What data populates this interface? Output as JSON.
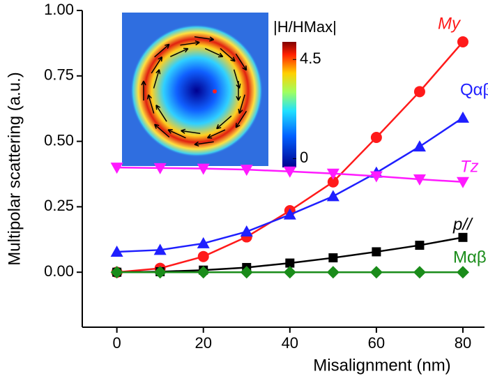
{
  "chart_data": {
    "type": "line",
    "xlabel": "Misalignment (nm)",
    "ylabel": "Multipolar scattering (a.u.)",
    "x": [
      0,
      10,
      20,
      30,
      40,
      50,
      60,
      70,
      80
    ],
    "xlim": [
      -8,
      85
    ],
    "xticks": [
      0,
      20,
      40,
      60,
      80
    ],
    "ylim": [
      -0.21,
      1.0
    ],
    "yticks": [
      {
        "value": 0,
        "label": "0.00"
      },
      {
        "value": 0.25,
        "label": "0.25"
      },
      {
        "value": 0.5,
        "label": "0.50"
      },
      {
        "value": 0.75,
        "label": "0.75"
      },
      {
        "value": 1.0,
        "label": "1.00"
      }
    ],
    "series": [
      {
        "name": "My",
        "color": "#ff1a1a",
        "marker": "circle",
        "values": [
          0,
          0.015,
          0.06,
          0.135,
          0.235,
          0.345,
          0.515,
          0.69,
          0.88
        ]
      },
      {
        "name": "Qαβ",
        "color": "#1f1fff",
        "marker": "triangle-up",
        "values": [
          0.078,
          0.085,
          0.11,
          0.155,
          0.22,
          0.29,
          0.38,
          0.48,
          0.59
        ]
      },
      {
        "name": "Tz",
        "color": "#ff1aff",
        "marker": "triangle-down",
        "values": [
          0.4,
          0.398,
          0.396,
          0.392,
          0.385,
          0.377,
          0.367,
          0.355,
          0.345
        ]
      },
      {
        "name": "p//",
        "color": "#000000",
        "marker": "square",
        "values": [
          0,
          0.002,
          0.008,
          0.018,
          0.035,
          0.055,
          0.078,
          0.103,
          0.133
        ]
      },
      {
        "name": "Mαβ",
        "color": "#1a8c1a",
        "marker": "diamond",
        "values": [
          0,
          0,
          0,
          0,
          0,
          0,
          0,
          0,
          0
        ]
      }
    ],
    "inset": {
      "colorbar_title": "|H/HMax|",
      "colorbar_range": [
        -0.4,
        5.3
      ],
      "colorbar_ticks": [
        0,
        4.5
      ]
    }
  }
}
